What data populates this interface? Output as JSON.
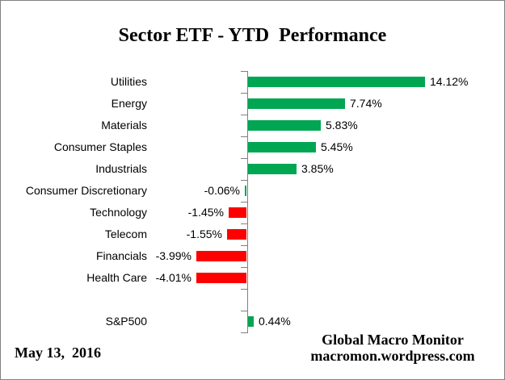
{
  "title": "Sector ETF - YTD  Performance",
  "footer": {
    "date": "May 13,  2016",
    "credit_line1": "Global Macro Monitor",
    "credit_line2": "macromon.wordpress.com"
  },
  "colors": {
    "positive_bar": "#00A651",
    "negative_bar": "#FF0000",
    "axis": "#808080",
    "frame_border": "#808080",
    "text": "#000000",
    "background": "#FFFFFF"
  },
  "chart_data": {
    "type": "bar",
    "orientation": "horizontal",
    "title": "Sector ETF - YTD  Performance",
    "categories": [
      "Utilities",
      "Energy",
      "Materials",
      "Consumer Staples",
      "Industrials",
      "Consumer Discretionary",
      "Technology",
      "Telecom",
      "Financials",
      "Health Care",
      "S&P500"
    ],
    "values": [
      14.12,
      7.74,
      5.83,
      5.45,
      3.85,
      -0.06,
      -1.45,
      -1.55,
      -3.99,
      -4.01,
      0.44
    ],
    "value_labels": [
      "14.12%",
      "7.74%",
      "5.83%",
      "5.45%",
      "3.85%",
      "-0.06%",
      "-1.45%",
      "-1.55%",
      "-3.99%",
      "-4.01%",
      "0.44%"
    ],
    "bar_colors": [
      "green",
      "green",
      "green",
      "green",
      "green",
      "green",
      "red",
      "red",
      "red",
      "red",
      "green"
    ],
    "unit": "%",
    "gap_before_category": "S&P500",
    "layout": {
      "value_axis_labels": "hidden",
      "gridlines": false,
      "zero_line": true,
      "category_labels_side": "left",
      "data_labels": "outside-end",
      "approx_value_range_shown": [
        -4.5,
        20
      ]
    }
  }
}
